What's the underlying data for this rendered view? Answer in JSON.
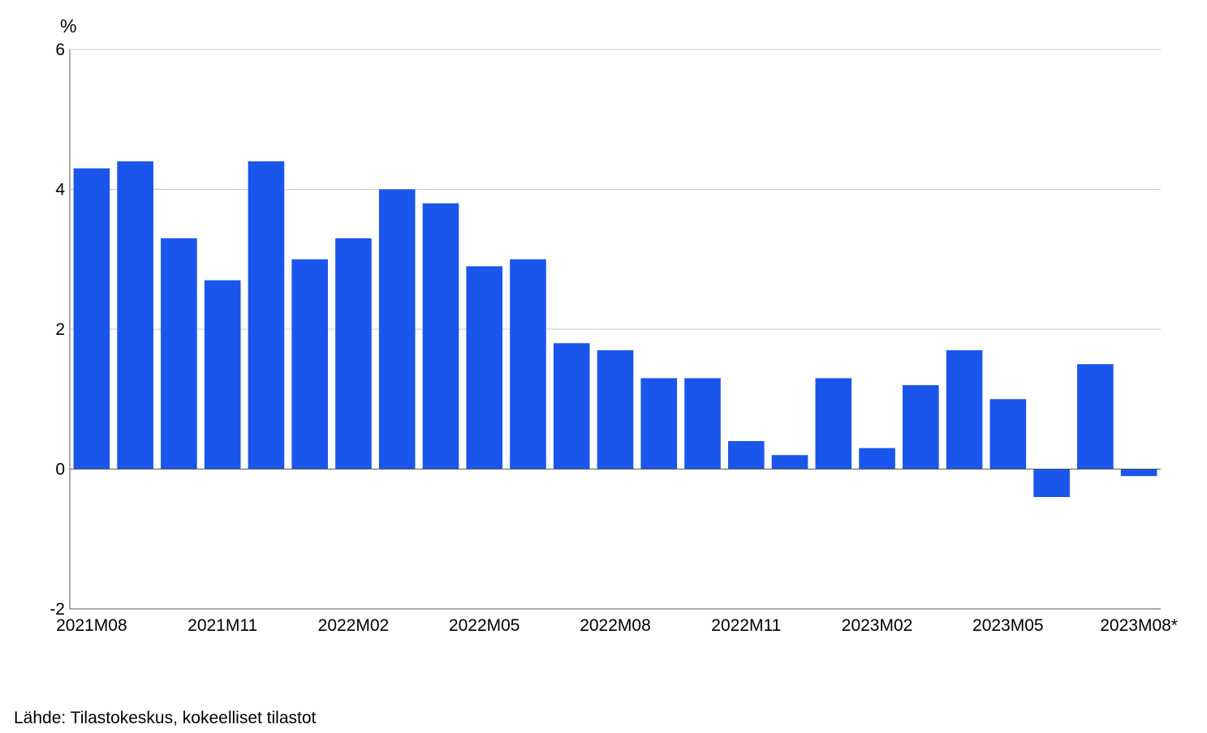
{
  "chart_data": {
    "type": "bar",
    "ylabel": "%",
    "ylim": [
      -2,
      6
    ],
    "yticks": [
      -2,
      0,
      2,
      4,
      6
    ],
    "grid": true,
    "bar_color": "#1a56eb",
    "categories": [
      "2021M08",
      "2021M09",
      "2021M10",
      "2021M11",
      "2021M12",
      "2022M01",
      "2022M02",
      "2022M03",
      "2022M04",
      "2022M05",
      "2022M06",
      "2022M07",
      "2022M08",
      "2022M09",
      "2022M10",
      "2022M11",
      "2022M12",
      "2023M01",
      "2023M02",
      "2023M03",
      "2023M04",
      "2023M05",
      "2023M06",
      "2023M07",
      "2023M08*"
    ],
    "values": [
      4.3,
      4.4,
      3.3,
      2.7,
      4.4,
      3.0,
      3.3,
      4.0,
      3.8,
      2.9,
      3.0,
      1.8,
      1.7,
      1.3,
      1.3,
      0.4,
      0.2,
      1.3,
      0.3,
      1.2,
      1.7,
      1.0,
      -0.4,
      1.5,
      -0.1
    ],
    "x_tick_labels": [
      "2021M08",
      "2021M11",
      "2022M02",
      "2022M05",
      "2022M08",
      "2022M11",
      "2023M02",
      "2023M05",
      "2023M08*"
    ]
  },
  "source": "Lähde: Tilastokeskus, kokeelliset tilastot"
}
